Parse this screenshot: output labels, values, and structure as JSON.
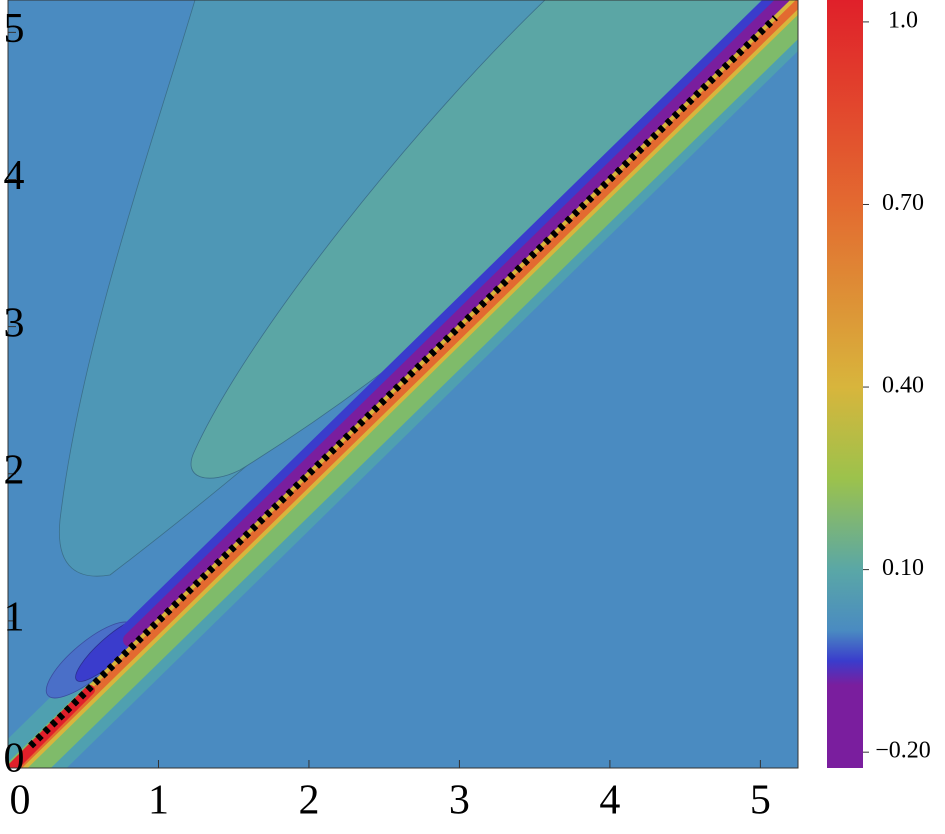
{
  "chart_data": {
    "type": "contour",
    "xlim": [
      0,
      5.25
    ],
    "ylim": [
      0,
      5.22
    ],
    "xticks": [
      0,
      1,
      2,
      3,
      4,
      5
    ],
    "yticks": [
      0,
      1,
      2,
      3,
      4,
      5
    ],
    "lines": [
      {
        "x": [
          0.15,
          5.1
        ],
        "y": [
          0.15,
          5.1
        ],
        "color": "#000000"
      }
    ],
    "colorbar": {
      "lim": [
        -0.226,
        1.036
      ],
      "ticks": [
        {
          "value": 1.0,
          "label": "1.0"
        },
        {
          "value": 0.7,
          "label": "0.70"
        },
        {
          "value": 0.4,
          "label": "0.40"
        },
        {
          "value": 0.1,
          "label": "0.10"
        },
        {
          "value": -0.2,
          "label": "−0.20"
        }
      ],
      "colormap": [
        {
          "value": -0.226,
          "color": "#7a1e9e"
        },
        {
          "value": -0.09,
          "color": "#7a1e9e"
        },
        {
          "value": -0.05,
          "color": "#3a3ccc"
        },
        {
          "value": 0.0,
          "color": "#4a8bc1"
        },
        {
          "value": 0.1,
          "color": "#5aa7a6"
        },
        {
          "value": 0.25,
          "color": "#9cc24c"
        },
        {
          "value": 0.4,
          "color": "#d8b53c"
        },
        {
          "value": 0.7,
          "color": "#e36a30"
        },
        {
          "value": 1.036,
          "color": "#e0202a"
        }
      ]
    }
  }
}
